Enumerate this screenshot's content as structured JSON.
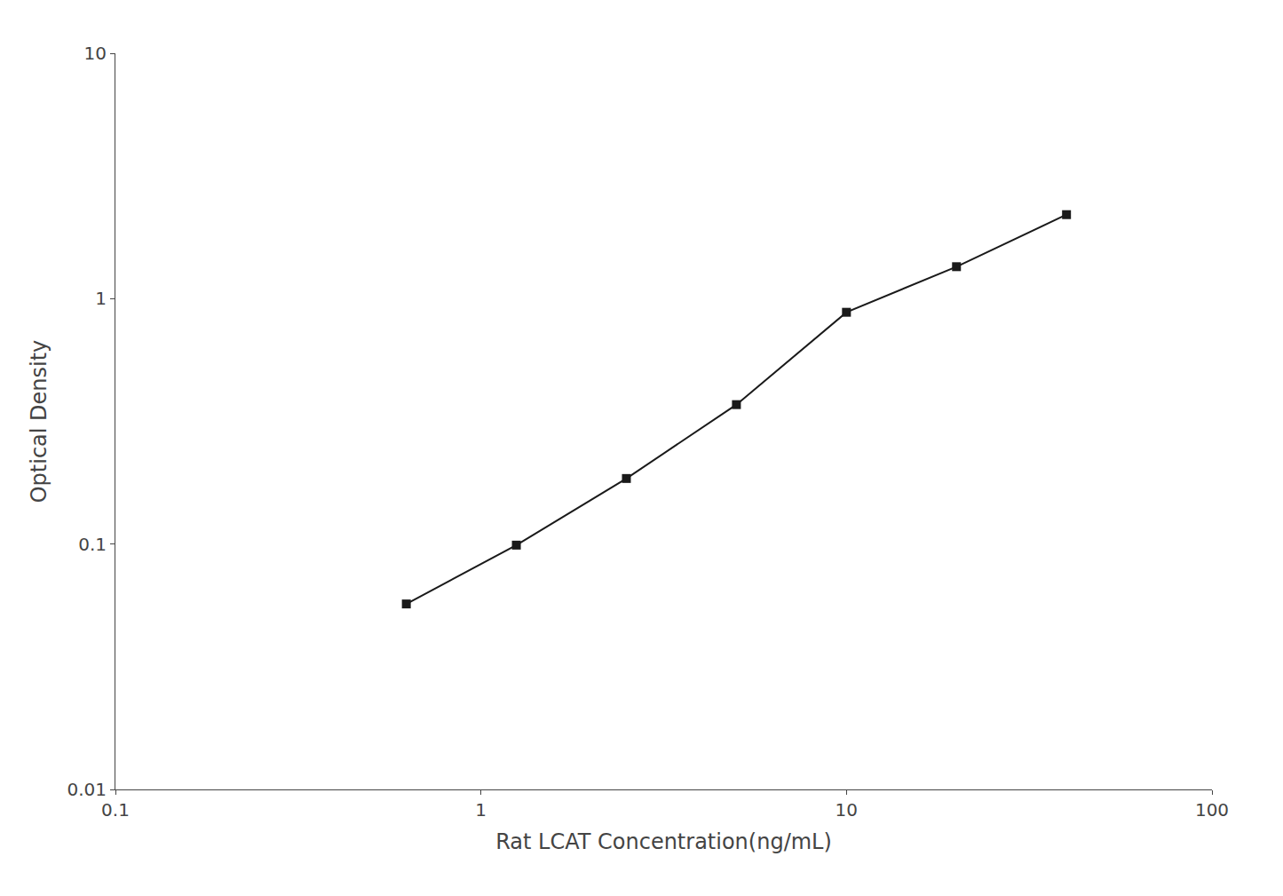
{
  "chart_data": {
    "type": "line",
    "x": [
      0.625,
      1.25,
      2.5,
      5,
      10,
      20,
      40
    ],
    "values": [
      0.057,
      0.099,
      0.185,
      0.37,
      0.88,
      1.35,
      2.2
    ],
    "xlabel": "Rat LCAT Concentration(ng/mL)",
    "ylabel": "Optical Density",
    "xlim": [
      0.1,
      100
    ],
    "ylim": [
      0.01,
      10
    ],
    "xticks": [
      0.1,
      1,
      10,
      100
    ],
    "yticks": [
      0.01,
      0.1,
      1,
      10
    ],
    "log": true,
    "grid": false,
    "color": "#1a1a1a",
    "marker": "square",
    "line_style": "solid"
  }
}
